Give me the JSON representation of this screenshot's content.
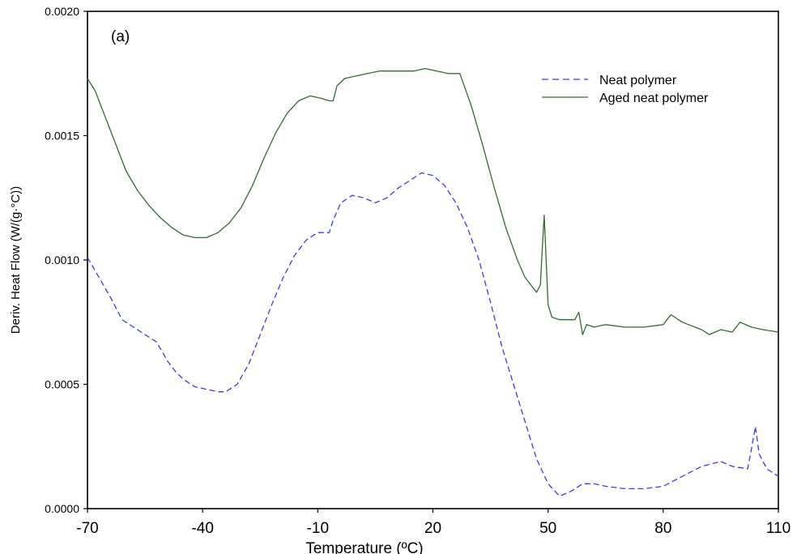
{
  "chart_data": {
    "type": "line",
    "panel_label": "(a)",
    "xlabel": "Temperature (ºC)",
    "ylabel": "Deriv. Heat Flow (W/(g·°C))",
    "xlim": [
      -70,
      110
    ],
    "ylim": [
      0,
      0.002
    ],
    "x_ticks": [
      "-70",
      "-40",
      "-10",
      "20",
      "50",
      "80",
      "110"
    ],
    "y_ticks": [
      "0.0000",
      "0.0005",
      "0.0010",
      "0.0015",
      "0.0020"
    ],
    "grid": false,
    "legend_position": "top-right",
    "series": [
      {
        "name": "Neat polymer",
        "color": "#3a3af0",
        "style": "dashed",
        "x": [
          -70,
          -67,
          -64,
          -61,
          -58,
          -55,
          -52,
          -49,
          -47,
          -45,
          -42,
          -39,
          -36,
          -34,
          -31,
          -28,
          -25,
          -22,
          -19,
          -16,
          -13,
          -10,
          -7,
          -6,
          -4,
          -1,
          2,
          5,
          8,
          11,
          14,
          17,
          20,
          23,
          26,
          29,
          32,
          35,
          38,
          41,
          44,
          47,
          50,
          53,
          56,
          59,
          62,
          65,
          70,
          75,
          80,
          85,
          90,
          95,
          98,
          102,
          103,
          104,
          105,
          107,
          110
        ],
        "y": [
          0.00101,
          0.00093,
          0.00085,
          0.00076,
          0.00073,
          0.0007,
          0.00067,
          0.00059,
          0.00055,
          0.00052,
          0.00049,
          0.00048,
          0.00047,
          0.00047,
          0.0005,
          0.00058,
          0.0007,
          0.00082,
          0.00093,
          0.00102,
          0.00108,
          0.00111,
          0.00111,
          0.00116,
          0.00123,
          0.00126,
          0.00125,
          0.00123,
          0.00125,
          0.00129,
          0.00132,
          0.00135,
          0.00134,
          0.0013,
          0.00123,
          0.00113,
          0.001,
          0.00083,
          0.00065,
          0.0005,
          0.00035,
          0.0002,
          0.0001,
          5e-05,
          7e-05,
          0.0001,
          0.0001,
          9e-05,
          8e-05,
          8e-05,
          9e-05,
          0.00013,
          0.00017,
          0.00019,
          0.00017,
          0.00016,
          0.00024,
          0.00033,
          0.00022,
          0.00016,
          0.00013
        ]
      },
      {
        "name": "Aged neat polymer",
        "color": "#2e6e2e",
        "style": "solid",
        "x": [
          -70,
          -68,
          -66,
          -63,
          -60,
          -57,
          -54,
          -51,
          -48,
          -45,
          -42,
          -39,
          -36,
          -33,
          -30,
          -27,
          -24,
          -21,
          -18,
          -15,
          -12,
          -9,
          -7,
          -6,
          -5,
          -3,
          0,
          3,
          6,
          9,
          12,
          15,
          18,
          21,
          24,
          27,
          30,
          33,
          36,
          39,
          42,
          44,
          46,
          47,
          48,
          48.5,
          49,
          49.5,
          50,
          51,
          53,
          55,
          57,
          58,
          59,
          60,
          62,
          65,
          70,
          75,
          80,
          82,
          85,
          90,
          92,
          95,
          98,
          100,
          103,
          106,
          110
        ],
        "y": [
          0.00173,
          0.00168,
          0.0016,
          0.00148,
          0.00136,
          0.00128,
          0.00122,
          0.00117,
          0.00113,
          0.0011,
          0.00109,
          0.00109,
          0.00111,
          0.00115,
          0.00121,
          0.0013,
          0.00141,
          0.00151,
          0.00159,
          0.00164,
          0.00166,
          0.00165,
          0.00164,
          0.00164,
          0.0017,
          0.00173,
          0.00174,
          0.00175,
          0.00176,
          0.00176,
          0.00176,
          0.00176,
          0.00177,
          0.00176,
          0.00175,
          0.00175,
          0.00162,
          0.00146,
          0.00129,
          0.00113,
          0.001,
          0.00093,
          0.00089,
          0.00087,
          0.0009,
          0.00105,
          0.00118,
          0.001,
          0.00082,
          0.00077,
          0.00076,
          0.00076,
          0.00076,
          0.00079,
          0.0007,
          0.00074,
          0.00073,
          0.00074,
          0.00073,
          0.00073,
          0.00074,
          0.00078,
          0.00075,
          0.00072,
          0.0007,
          0.00072,
          0.00071,
          0.00075,
          0.00073,
          0.00072,
          0.00071
        ]
      }
    ]
  }
}
